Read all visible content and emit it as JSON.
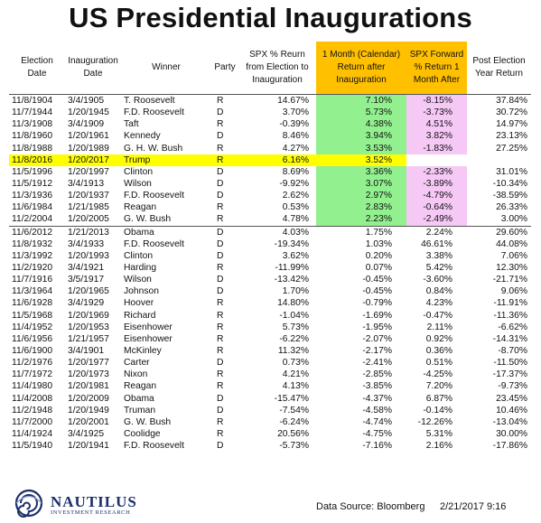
{
  "title": "US Presidential Inaugurations",
  "columns": [
    "Election Date",
    "Inauguration Date",
    "Winner",
    "Party",
    "SPX % Reurn from Election to Inauguration",
    "1 Month (Calendar) Return after Inauguration",
    "SPX Forward % Return 1 Month After",
    "Post Election Year Return"
  ],
  "rows": [
    {
      "election": "11/8/1904",
      "inauguration": "3/4/1905",
      "winner": "T. Roosevelt",
      "party": "R",
      "spx_to_inaug": "14.67%",
      "one_month": "7.10%",
      "forward": "-8.15%",
      "post_year": "37.84%"
    },
    {
      "election": "11/7/1944",
      "inauguration": "1/20/1945",
      "winner": "F.D. Roosevelt",
      "party": "D",
      "spx_to_inaug": "3.70%",
      "one_month": "5.73%",
      "forward": "-3.73%",
      "post_year": "30.72%"
    },
    {
      "election": "11/3/1908",
      "inauguration": "3/4/1909",
      "winner": "Taft",
      "party": "R",
      "spx_to_inaug": "-0.39%",
      "one_month": "4.38%",
      "forward": "4.51%",
      "post_year": "14.97%"
    },
    {
      "election": "11/8/1960",
      "inauguration": "1/20/1961",
      "winner": "Kennedy",
      "party": "D",
      "spx_to_inaug": "8.46%",
      "one_month": "3.94%",
      "forward": "3.82%",
      "post_year": "23.13%"
    },
    {
      "election": "11/8/1988",
      "inauguration": "1/20/1989",
      "winner": "G. H. W. Bush",
      "party": "R",
      "spx_to_inaug": "4.27%",
      "one_month": "3.53%",
      "forward": "-1.83%",
      "post_year": "27.25%"
    },
    {
      "election": "11/8/2016",
      "inauguration": "1/20/2017",
      "winner": "Trump",
      "party": "R",
      "spx_to_inaug": "6.16%",
      "one_month": "3.52%",
      "forward": "",
      "post_year": "",
      "highlight": true
    },
    {
      "election": "11/5/1996",
      "inauguration": "1/20/1997",
      "winner": "Clinton",
      "party": "D",
      "spx_to_inaug": "8.69%",
      "one_month": "3.36%",
      "forward": "-2.33%",
      "post_year": "31.01%"
    },
    {
      "election": "11/5/1912",
      "inauguration": "3/4/1913",
      "winner": "Wilson",
      "party": "D",
      "spx_to_inaug": "-9.92%",
      "one_month": "3.07%",
      "forward": "-3.89%",
      "post_year": "-10.34%"
    },
    {
      "election": "11/3/1936",
      "inauguration": "1/20/1937",
      "winner": "F.D. Roosevelt",
      "party": "D",
      "spx_to_inaug": "2.62%",
      "one_month": "2.97%",
      "forward": "-4.79%",
      "post_year": "-38.59%"
    },
    {
      "election": "11/6/1984",
      "inauguration": "1/21/1985",
      "winner": "Reagan",
      "party": "R",
      "spx_to_inaug": "0.53%",
      "one_month": "2.83%",
      "forward": "-0.64%",
      "post_year": "26.33%"
    },
    {
      "election": "11/2/2004",
      "inauguration": "1/20/2005",
      "winner": "G. W. Bush",
      "party": "R",
      "spx_to_inaug": "4.78%",
      "one_month": "2.23%",
      "forward": "-2.49%",
      "post_year": "3.00%"
    },
    {
      "election": "11/6/2012",
      "inauguration": "1/21/2013",
      "winner": "Obama",
      "party": "D",
      "spx_to_inaug": "4.03%",
      "one_month": "1.75%",
      "forward": "2.24%",
      "post_year": "29.60%"
    },
    {
      "election": "11/8/1932",
      "inauguration": "3/4/1933",
      "winner": "F.D. Roosevelt",
      "party": "D",
      "spx_to_inaug": "-19.34%",
      "one_month": "1.03%",
      "forward": "46.61%",
      "post_year": "44.08%"
    },
    {
      "election": "11/3/1992",
      "inauguration": "1/20/1993",
      "winner": "Clinton",
      "party": "D",
      "spx_to_inaug": "3.62%",
      "one_month": "0.20%",
      "forward": "3.38%",
      "post_year": "7.06%"
    },
    {
      "election": "11/2/1920",
      "inauguration": "3/4/1921",
      "winner": "Harding",
      "party": "R",
      "spx_to_inaug": "-11.99%",
      "one_month": "0.07%",
      "forward": "5.42%",
      "post_year": "12.30%"
    },
    {
      "election": "11/7/1916",
      "inauguration": "3/5/1917",
      "winner": "Wilson",
      "party": "D",
      "spx_to_inaug": "-13.42%",
      "one_month": "-0.45%",
      "forward": "-3.60%",
      "post_year": "-21.71%"
    },
    {
      "election": "11/3/1964",
      "inauguration": "1/20/1965",
      "winner": "Johnson",
      "party": "D",
      "spx_to_inaug": "1.70%",
      "one_month": "-0.45%",
      "forward": "0.84%",
      "post_year": "9.06%"
    },
    {
      "election": "11/6/1928",
      "inauguration": "3/4/1929",
      "winner": "Hoover",
      "party": "R",
      "spx_to_inaug": "14.80%",
      "one_month": "-0.79%",
      "forward": "4.23%",
      "post_year": "-11.91%"
    },
    {
      "election": "11/5/1968",
      "inauguration": "1/20/1969",
      "winner": "Richard",
      "party": "R",
      "spx_to_inaug": "-1.04%",
      "one_month": "-1.69%",
      "forward": "-0.47%",
      "post_year": "-11.36%"
    },
    {
      "election": "11/4/1952",
      "inauguration": "1/20/1953",
      "winner": "Eisenhower",
      "party": "R",
      "spx_to_inaug": "5.73%",
      "one_month": "-1.95%",
      "forward": "2.11%",
      "post_year": "-6.62%"
    },
    {
      "election": "11/6/1956",
      "inauguration": "1/21/1957",
      "winner": "Eisenhower",
      "party": "R",
      "spx_to_inaug": "-6.22%",
      "one_month": "-2.07%",
      "forward": "0.92%",
      "post_year": "-14.31%"
    },
    {
      "election": "11/6/1900",
      "inauguration": "3/4/1901",
      "winner": "McKinley",
      "party": "R",
      "spx_to_inaug": "11.32%",
      "one_month": "-2.17%",
      "forward": "0.36%",
      "post_year": "-8.70%"
    },
    {
      "election": "11/2/1976",
      "inauguration": "1/20/1977",
      "winner": "Carter",
      "party": "D",
      "spx_to_inaug": "0.73%",
      "one_month": "-2.41%",
      "forward": "0.51%",
      "post_year": "-11.50%"
    },
    {
      "election": "11/7/1972",
      "inauguration": "1/20/1973",
      "winner": "Nixon",
      "party": "R",
      "spx_to_inaug": "4.21%",
      "one_month": "-2.85%",
      "forward": "-4.25%",
      "post_year": "-17.37%"
    },
    {
      "election": "11/4/1980",
      "inauguration": "1/20/1981",
      "winner": "Reagan",
      "party": "R",
      "spx_to_inaug": "4.13%",
      "one_month": "-3.85%",
      "forward": "7.20%",
      "post_year": "-9.73%"
    },
    {
      "election": "11/4/2008",
      "inauguration": "1/20/2009",
      "winner": "Obama",
      "party": "D",
      "spx_to_inaug": "-15.47%",
      "one_month": "-4.37%",
      "forward": "6.87%",
      "post_year": "23.45%"
    },
    {
      "election": "11/2/1948",
      "inauguration": "1/20/1949",
      "winner": "Truman",
      "party": "D",
      "spx_to_inaug": "-7.54%",
      "one_month": "-4.58%",
      "forward": "-0.14%",
      "post_year": "10.46%"
    },
    {
      "election": "11/7/2000",
      "inauguration": "1/20/2001",
      "winner": "G. W. Bush",
      "party": "R",
      "spx_to_inaug": "-6.24%",
      "one_month": "-4.74%",
      "forward": "-12.26%",
      "post_year": "-13.04%"
    },
    {
      "election": "11/4/1924",
      "inauguration": "3/4/1925",
      "winner": "Coolidge",
      "party": "R",
      "spx_to_inaug": "20.56%",
      "one_month": "-4.75%",
      "forward": "5.31%",
      "post_year": "30.00%"
    },
    {
      "election": "11/5/1940",
      "inauguration": "1/20/1941",
      "winner": "F.D. Roosevelt",
      "party": "D",
      "spx_to_inaug": "-5.73%",
      "one_month": "-7.16%",
      "forward": "2.16%",
      "post_year": "-17.86%"
    }
  ],
  "positive_group_size": 11,
  "colors": {
    "one_month_header": "#ffc000",
    "positive_one_month": "#92f08f",
    "forward_highlight": "#f5c8f5",
    "current_row": "#ffff00",
    "logo_navy": "#1b2f6b"
  },
  "footer": {
    "logo_name": "NAUTILUS",
    "logo_sub": "INVESTMENT RESEARCH",
    "source": "Data Source: Bloomberg",
    "timestamp": "2/21/2017 9:16"
  }
}
